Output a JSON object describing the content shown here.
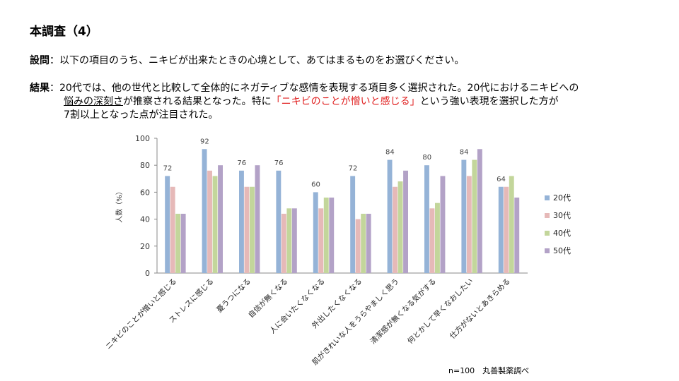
{
  "header": {
    "title": "本調査（4）"
  },
  "question": {
    "label": "設問",
    "sep": "：",
    "text": "以下の項目のうち、ニキビが出来たときの心境として、あてはまるものをお選びください。"
  },
  "result": {
    "label": "結果",
    "sep": "：",
    "line1": "20代では、他の世代と比較して全体的にネガティブな感情を表現する項目多く選択された。20代におけるニキビへの",
    "line2_underlined": "悩みの深刻さ",
    "line2_rest": "が推察される結果となった。特に",
    "line2_red": "「ニキビのことが憎いと感じる」",
    "line2_tail": "という強い表現を選択した方が",
    "line3": "7割以上となった点が注目された。"
  },
  "footnote": "n=100　丸善製薬調べ",
  "chart_data": {
    "type": "bar",
    "ylabel": "人数（%）",
    "ylim": [
      0,
      100
    ],
    "yticks": [
      0,
      20,
      40,
      60,
      80,
      100
    ],
    "categories": [
      "ニキビのことが憎いと感じる",
      "ストレスに感じる",
      "憂うつになる",
      "自信が無くなる",
      "人に会いたくなくなる",
      "外出したくなくなる",
      "肌がきれいな人をうらやましく思う",
      "清潔感が無くなる気がする",
      "何とかして早くなおしたい",
      "仕方がないとあきらめる"
    ],
    "series": [
      {
        "name": "20代",
        "color": "#95b3d7",
        "values": [
          72,
          92,
          76,
          76,
          60,
          72,
          84,
          80,
          84,
          64
        ]
      },
      {
        "name": "30代",
        "color": "#e6b9b8",
        "values": [
          64,
          76,
          64,
          44,
          48,
          40,
          64,
          48,
          72,
          64
        ]
      },
      {
        "name": "40代",
        "color": "#c3d69b",
        "values": [
          44,
          72,
          64,
          48,
          56,
          44,
          68,
          52,
          84,
          72
        ]
      },
      {
        "name": "50代",
        "color": "#b3a2c7",
        "values": [
          44,
          80,
          80,
          48,
          56,
          44,
          76,
          72,
          92,
          56
        ]
      }
    ],
    "data_labels_series": "20代",
    "legend_position": "right",
    "grid": false
  }
}
